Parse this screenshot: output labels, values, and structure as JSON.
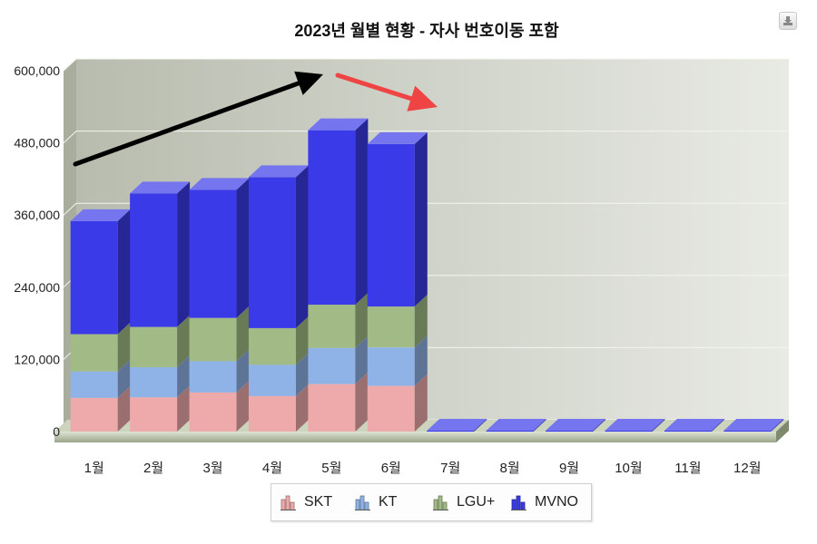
{
  "chart_data": {
    "type": "bar",
    "stacked": true,
    "three_d": true,
    "title": "2023년 월별 현황 - 자사 번호이동 포함",
    "categories": [
      "1월",
      "2월",
      "3월",
      "4월",
      "5월",
      "6월",
      "7월",
      "8월",
      "9월",
      "10월",
      "11월",
      "12월"
    ],
    "y_ticks": [
      "0",
      "120,000",
      "240,000",
      "360,000",
      "480,000",
      "600,000"
    ],
    "ylim": [
      0,
      600000
    ],
    "grid": true,
    "legend_position": "bottom",
    "series": [
      {
        "name": "SKT",
        "color": "#eeaaaa",
        "values": [
          56000,
          57000,
          65000,
          59000,
          79000,
          76000,
          0,
          0,
          0,
          0,
          0,
          0
        ]
      },
      {
        "name": "KT",
        "color": "#8fb3e6",
        "values": [
          44000,
          50000,
          52000,
          52000,
          60000,
          64000,
          0,
          0,
          0,
          0,
          0,
          0
        ]
      },
      {
        "name": "LGU+",
        "color": "#a2bb86",
        "values": [
          62000,
          67000,
          72000,
          61000,
          72000,
          68000,
          0,
          0,
          0,
          0,
          0,
          0
        ]
      },
      {
        "name": "MVNO",
        "color": "#3a3ae8",
        "values": [
          188000,
          222000,
          213000,
          251000,
          290000,
          270000,
          0,
          0,
          0,
          0,
          0,
          0
        ]
      }
    ],
    "annotations": [
      {
        "type": "arrow",
        "color": "#000000",
        "direction": "up-right"
      },
      {
        "type": "arrow",
        "color": "#ee4444",
        "direction": "down-right"
      }
    ]
  },
  "export_button": {
    "icon": "export-icon"
  }
}
